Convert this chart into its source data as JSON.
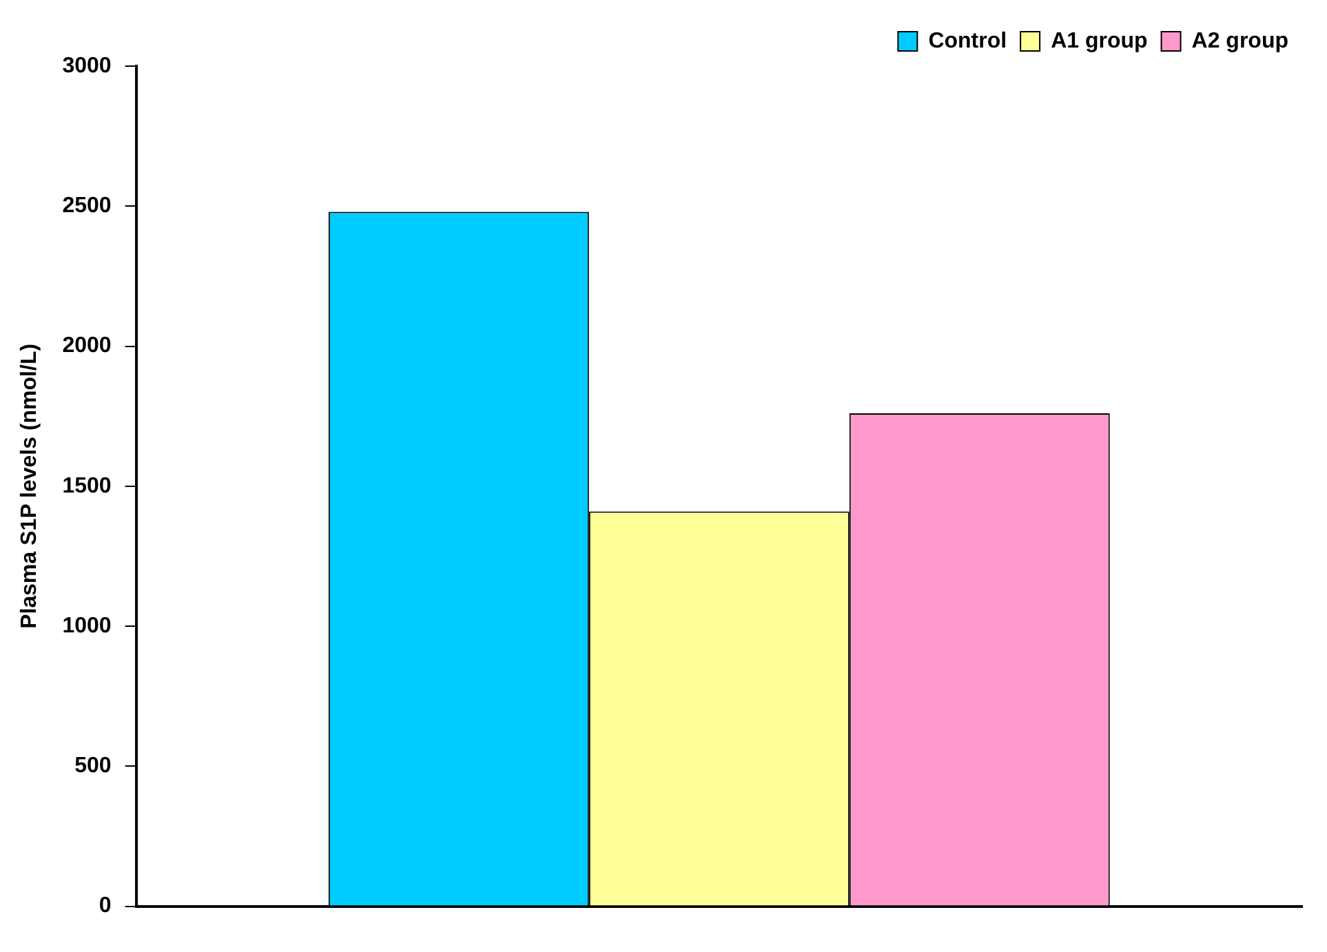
{
  "chart_data": {
    "type": "bar",
    "ylabel": "Plasma S1P levels (nmol/L)",
    "categories": [
      null
    ],
    "series": [
      {
        "name": "Control",
        "color": "#00ccff",
        "values": [
          2480
        ]
      },
      {
        "name": "A1 group",
        "color": "#ffff99",
        "values": [
          1410
        ]
      },
      {
        "name": "A2 group",
        "color": "#ff99cc",
        "values": [
          1760
        ]
      }
    ],
    "ylim": [
      0,
      3000
    ],
    "yticks": [
      0,
      500,
      1000,
      1500,
      2000,
      2500,
      3000
    ],
    "grid": false,
    "legend": "top right"
  }
}
